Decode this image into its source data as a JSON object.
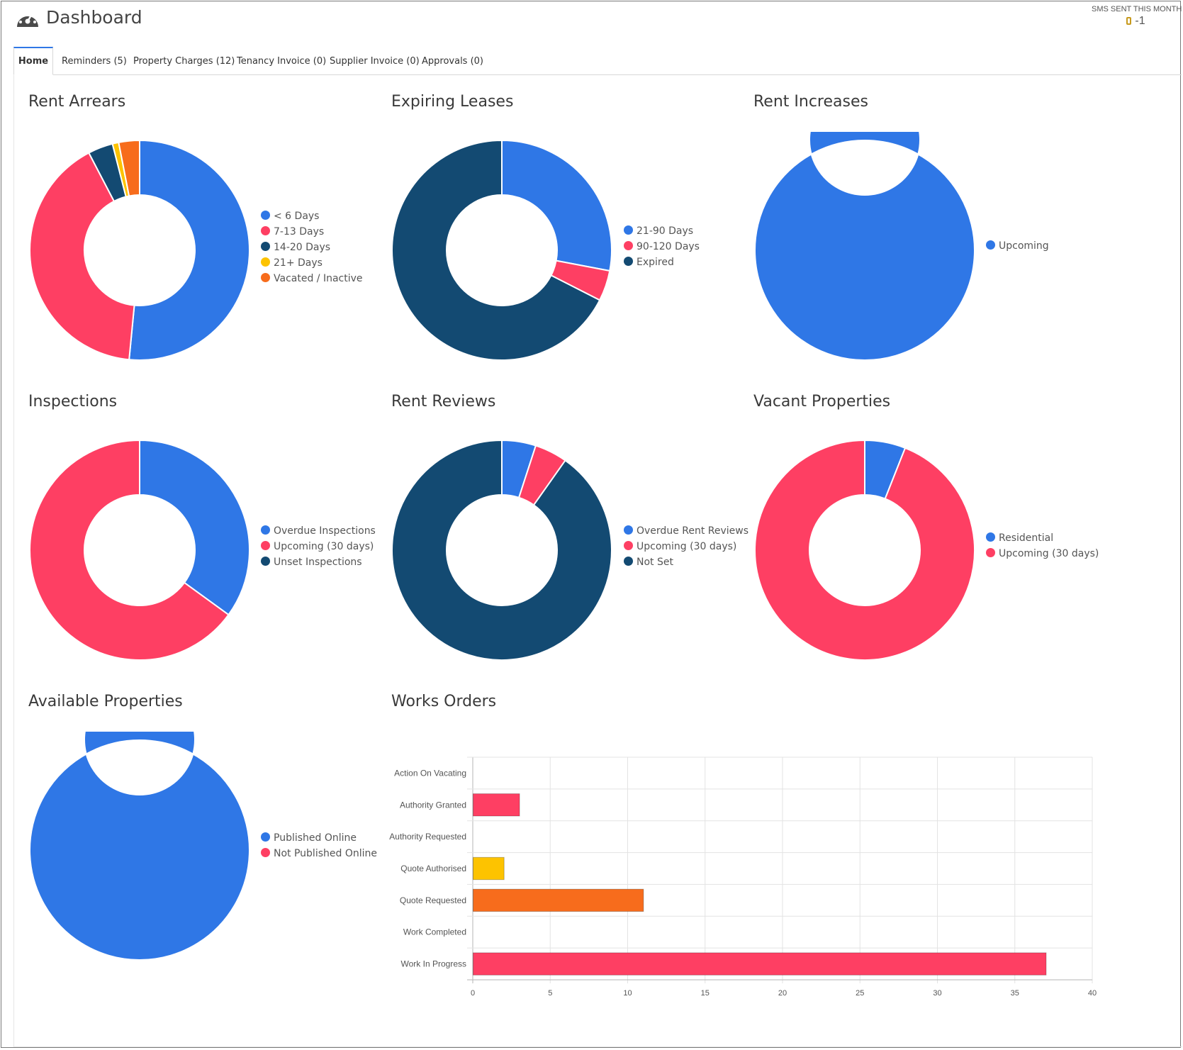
{
  "header": {
    "title": "Dashboard",
    "sms_label": "SMS SENT THIS MONTH",
    "sms_value": "-1"
  },
  "tabs": [
    {
      "label": "Home",
      "active": true
    },
    {
      "label": "Reminders (5)"
    },
    {
      "label": "Property Charges (12)"
    },
    {
      "label": "Tenancy Invoice (0)"
    },
    {
      "label": "Supplier Invoice (0)"
    },
    {
      "label": "Approvals (0)"
    }
  ],
  "colors": {
    "blue": "#2f77e6",
    "red": "#fe3f63",
    "navy": "#134a72",
    "yellow": "#fdc300",
    "orange": "#f76c1c",
    "tab_accent": "#2f77e6"
  },
  "panels": {
    "rent_arrears": {
      "title": "Rent Arrears"
    },
    "expiring_leases": {
      "title": "Expiring Leases"
    },
    "rent_increases": {
      "title": "Rent Increases"
    },
    "inspections": {
      "title": "Inspections"
    },
    "rent_reviews": {
      "title": "Rent Reviews"
    },
    "vacant_properties": {
      "title": "Vacant Properties"
    },
    "available_properties": {
      "title": "Available Properties"
    },
    "works_orders": {
      "title": "Works Orders"
    }
  },
  "chart_data": [
    {
      "id": "rent_arrears",
      "type": "pie",
      "donut": true,
      "labels": [
        "< 6 Days",
        "7-13 Days",
        "14-20 Days",
        "21+ Days",
        "Vacated / Inactive"
      ],
      "values": [
        50.5,
        40,
        3.6,
        0.9,
        3
      ],
      "colors": [
        "#2f77e6",
        "#fe3f63",
        "#134a72",
        "#fdc300",
        "#f76c1c"
      ],
      "legend": "right"
    },
    {
      "id": "expiring_leases",
      "type": "pie",
      "donut": true,
      "labels": [
        "21-90 Days",
        "90-120 Days",
        "Expired"
      ],
      "values": [
        28,
        4.5,
        67.5
      ],
      "colors": [
        "#2f77e6",
        "#fe3f63",
        "#134a72"
      ],
      "legend": "right"
    },
    {
      "id": "rent_increases",
      "type": "pie",
      "donut": true,
      "labels": [
        "Upcoming"
      ],
      "values": [
        100
      ],
      "colors": [
        "#2f77e6"
      ],
      "legend": "right"
    },
    {
      "id": "inspections",
      "type": "pie",
      "donut": true,
      "labels": [
        "Overdue Inspections",
        "Upcoming (30 days)",
        "Unset Inspections"
      ],
      "values": [
        35,
        65,
        0
      ],
      "colors": [
        "#2f77e6",
        "#fe3f63",
        "#134a72"
      ],
      "legend": "right"
    },
    {
      "id": "rent_reviews",
      "type": "pie",
      "donut": true,
      "labels": [
        "Overdue Rent Reviews",
        "Upcoming (30 days)",
        "Not Set"
      ],
      "values": [
        5,
        4.8,
        90.2
      ],
      "colors": [
        "#2f77e6",
        "#fe3f63",
        "#134a72"
      ],
      "legend": "right"
    },
    {
      "id": "vacant_properties",
      "type": "pie",
      "donut": true,
      "labels": [
        "Residential",
        "Upcoming (30 days)"
      ],
      "values": [
        6,
        94
      ],
      "colors": [
        "#2f77e6",
        "#fe3f63"
      ],
      "legend": "right"
    },
    {
      "id": "available_properties",
      "type": "pie",
      "donut": true,
      "labels": [
        "Published Online",
        "Not Published Online"
      ],
      "values": [
        100,
        0
      ],
      "colors": [
        "#2f77e6",
        "#fe3f63"
      ],
      "legend": "right"
    },
    {
      "id": "works_orders",
      "type": "bar",
      "orientation": "horizontal",
      "categories": [
        "Action On Vacating",
        "Authority Granted",
        "Authority Requested",
        "Quote Authorised",
        "Quote Requested",
        "Work Completed",
        "Work In Progress"
      ],
      "values": [
        0,
        3,
        0,
        2,
        11,
        0,
        37
      ],
      "colors": [
        "#2f77e6",
        "#fe3f63",
        "#134a72",
        "#fdc300",
        "#f76c1c",
        "#2f77e6",
        "#fe3f63"
      ],
      "xlim": [
        0,
        40
      ],
      "xticks": [
        "0",
        "5",
        "10",
        "15",
        "20",
        "25",
        "30",
        "35",
        "40"
      ],
      "grid": true
    }
  ]
}
